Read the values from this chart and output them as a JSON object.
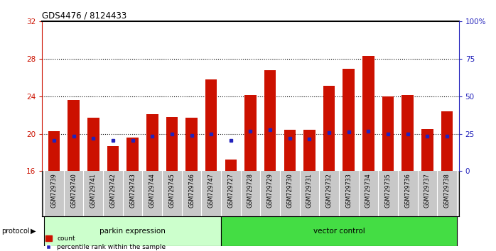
{
  "title": "GDS4476 / 8124433",
  "samples": [
    "GSM729739",
    "GSM729740",
    "GSM729741",
    "GSM729742",
    "GSM729743",
    "GSM729744",
    "GSM729745",
    "GSM729746",
    "GSM729747",
    "GSM729727",
    "GSM729728",
    "GSM729729",
    "GSM729730",
    "GSM729731",
    "GSM729732",
    "GSM729733",
    "GSM729734",
    "GSM729735",
    "GSM729736",
    "GSM729737",
    "GSM729738"
  ],
  "count_values": [
    20.3,
    23.6,
    21.7,
    18.7,
    19.6,
    22.1,
    21.8,
    21.7,
    25.8,
    17.2,
    24.1,
    26.8,
    20.4,
    20.4,
    25.1,
    26.9,
    28.3,
    24.0,
    24.1,
    20.5,
    22.4
  ],
  "percentile_values": [
    19.3,
    19.7,
    19.5,
    19.3,
    19.3,
    19.7,
    20.0,
    19.8,
    20.0,
    19.3,
    20.3,
    20.4,
    19.5,
    19.4,
    20.1,
    20.2,
    20.3,
    20.0,
    20.0,
    19.7,
    19.7
  ],
  "parkin_count": 9,
  "vector_count": 12,
  "ymin": 16,
  "ymax": 32,
  "bar_color": "#CC1100",
  "dot_color": "#2222BB",
  "parkin_light_color": "#CCFFCC",
  "vector_bright_color": "#44DD44",
  "cell_bg_color": "#C8C8C8",
  "legend_bar_color": "#CC1100",
  "legend_dot_color": "#2222BB"
}
